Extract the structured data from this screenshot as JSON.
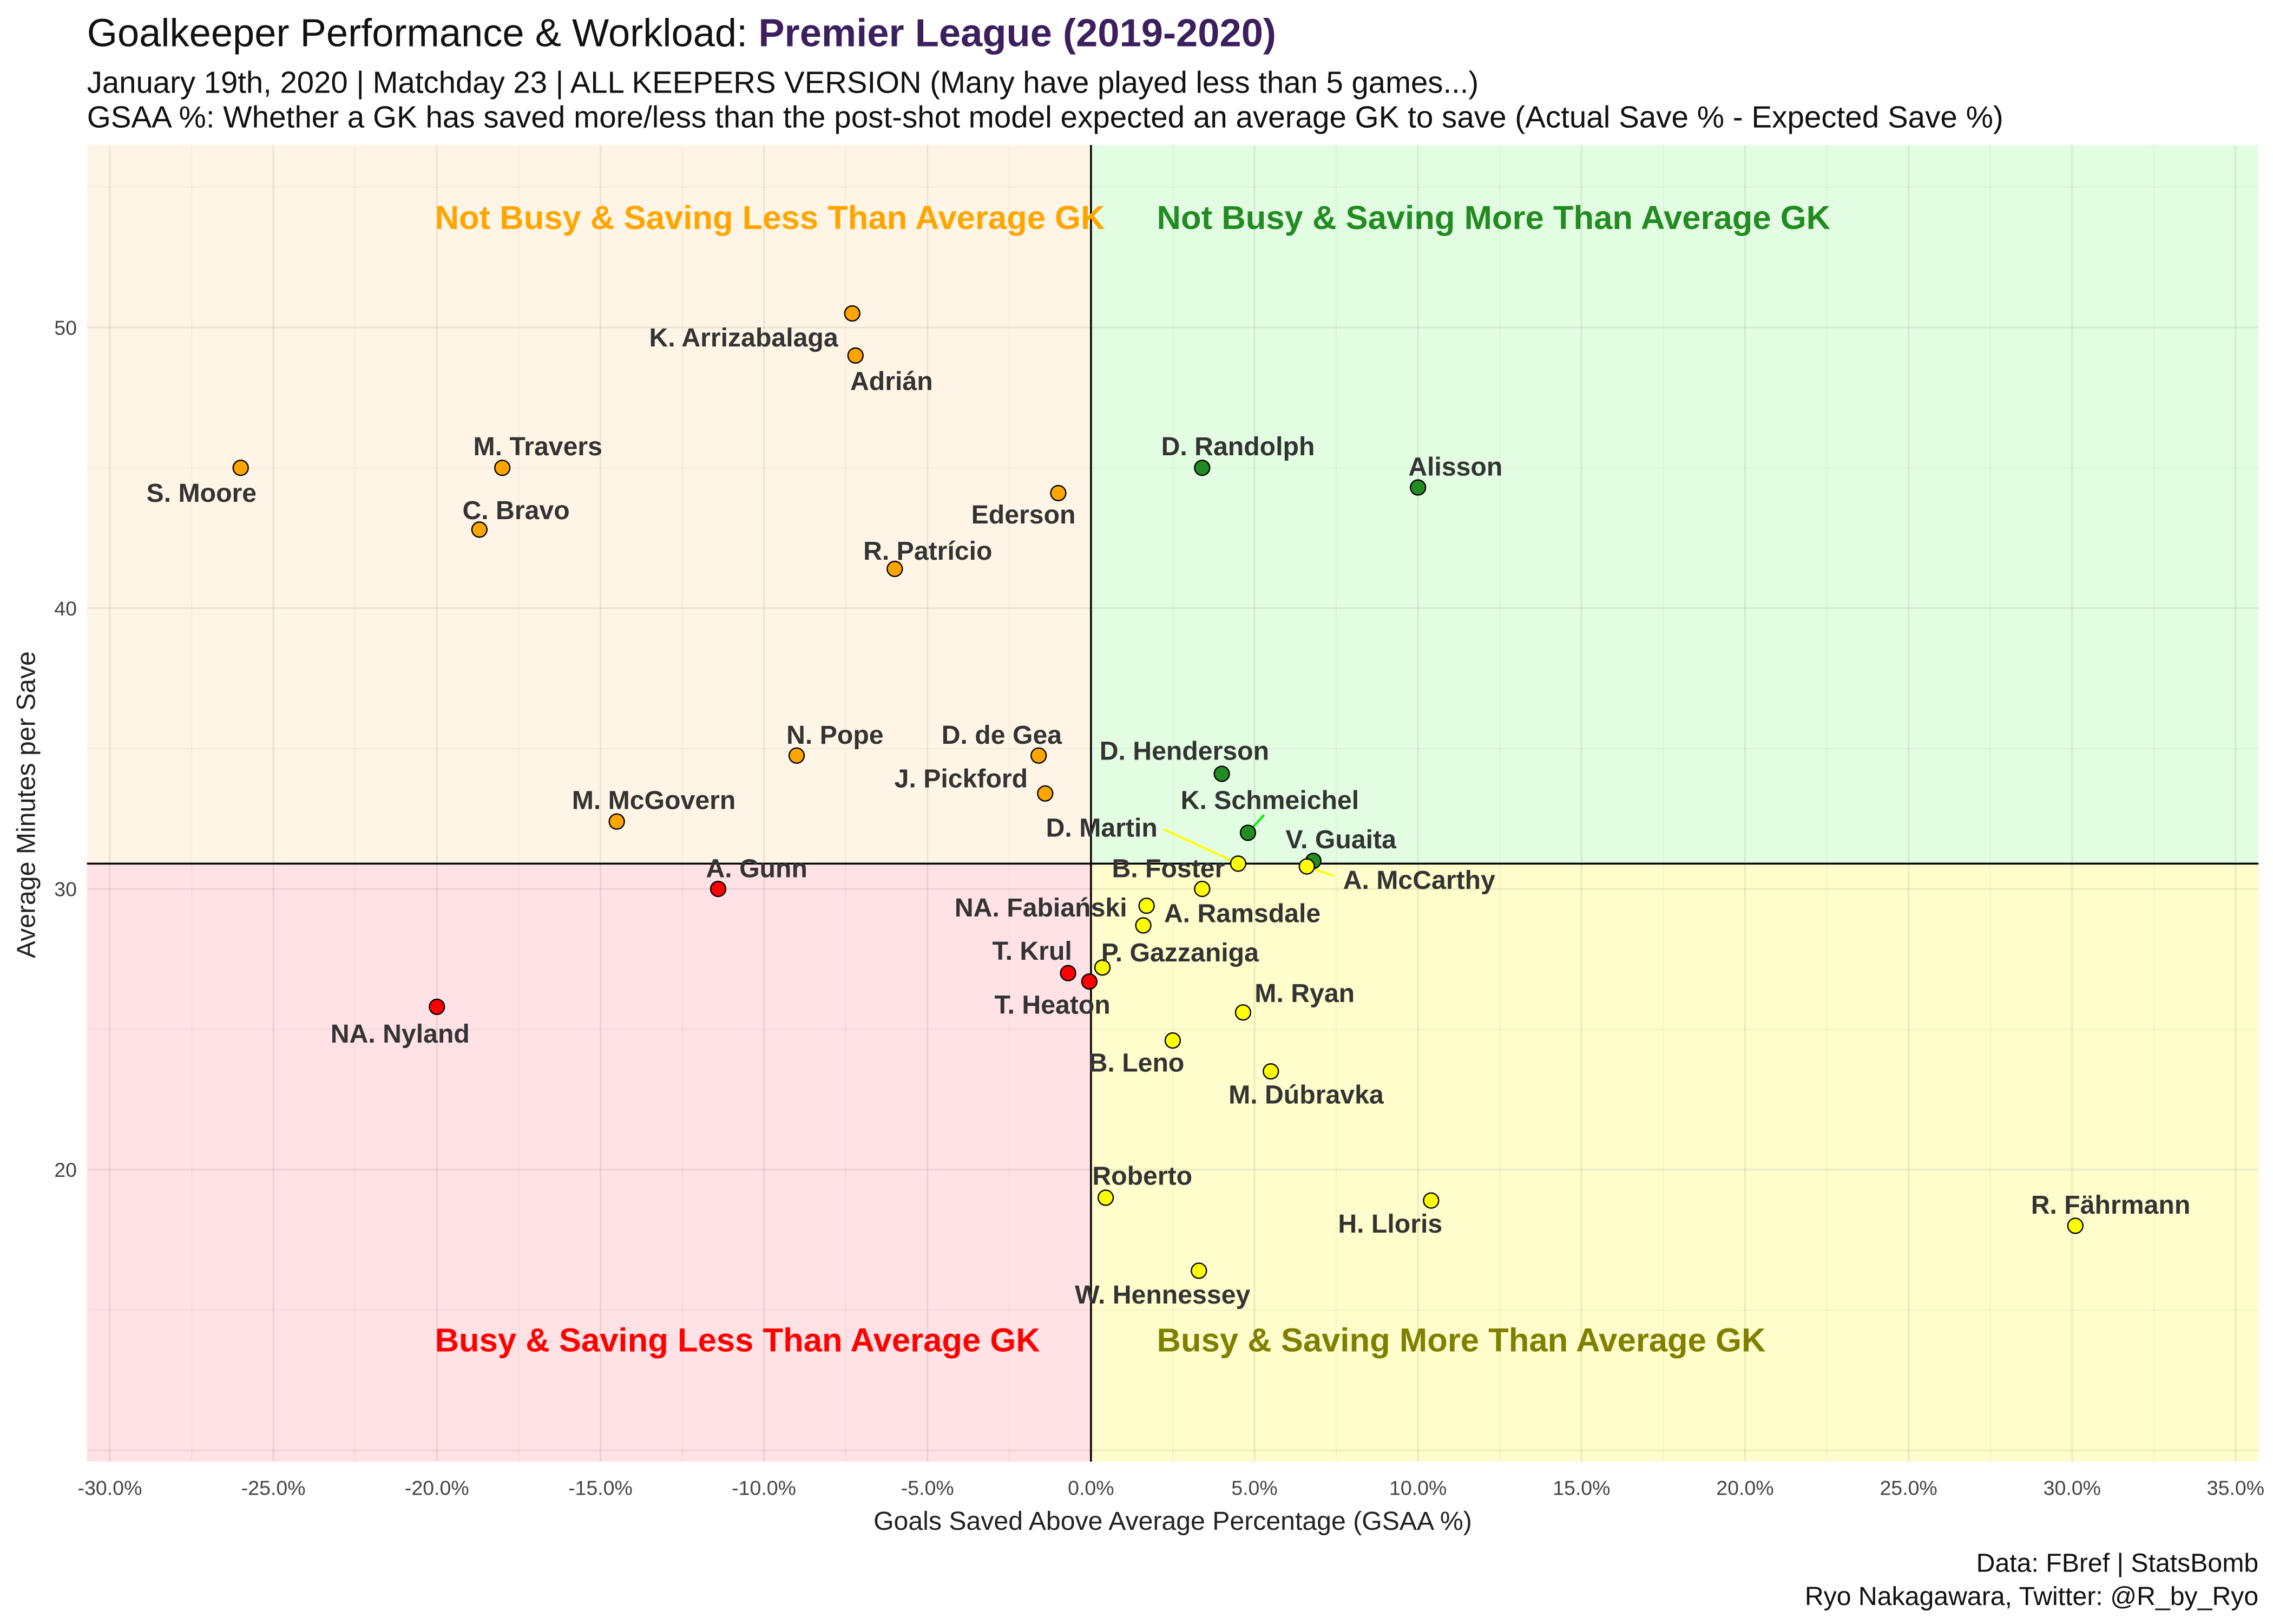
{
  "title": {
    "prefix": "Goalkeeper Performance & Workload: ",
    "highlight": "Premier League (2019-2020)"
  },
  "subtitle_1": "January 19th, 2020 | Matchday 23 | ALL KEEPERS VERSION (Many have played less than 5 games...)",
  "subtitle_2": "GSAA %: Whether a GK has saved more/less than the post-shot model expected an average GK to save (Actual Save % - Expected Save %)",
  "caption_1": "Data: FBref | StatsBomb",
  "caption_2": "Ryo Nakagawara, Twitter: @R_by_Ryo",
  "colors": {
    "orange": "#FFA500",
    "green": "#228B22",
    "red": "#FF0000",
    "yellow": "#FFFF00",
    "q_tl": "#FFF5E6",
    "q_tr": "#E3FDE3",
    "q_bl": "#FFE2E6",
    "q_br": "#FFFDCC",
    "q_tl_text": "#FFA500",
    "q_tr_text": "#228B22",
    "q_bl_text": "#FF0000",
    "q_br_text": "#808000"
  },
  "chart_data": {
    "type": "scatter",
    "xlabel": "Goals Saved Above Average Percentage (GSAA %)",
    "ylabel": "Average Minutes per Save",
    "xlim": [
      -30.7,
      35.7
    ],
    "ylim": [
      9.6,
      56.5
    ],
    "x_ticks": [
      -30,
      -25,
      -20,
      -15,
      -10,
      -5,
      0,
      5,
      10,
      15,
      20,
      25,
      30,
      35
    ],
    "x_tick_labels": [
      "-30.0%",
      "-25.0%",
      "-20.0%",
      "-15.0%",
      "-10.0%",
      "-5.0%",
      "0.0%",
      "5.0%",
      "10.0%",
      "15.0%",
      "20.0%",
      "25.0%",
      "30.0%",
      "35.0%"
    ],
    "y_ticks": [
      20,
      30,
      40,
      50
    ],
    "y_tick_labels": [
      "20",
      "30",
      "40",
      "50"
    ],
    "vline_x": 0,
    "hline_y": 30.9,
    "quadrant_labels": {
      "top_left": "Not Busy & Saving Less Than Average GK",
      "top_right": "Not Busy & Saving More Than Average GK",
      "bottom_left": "Busy & Saving Less Than Average GK",
      "bottom_right": "Busy & Saving More Than Average GK"
    },
    "points": [
      {
        "name": "S. Moore",
        "x": -26.0,
        "y": 45.0,
        "group": "orange"
      },
      {
        "name": "M. Travers",
        "x": -18.0,
        "y": 45.0,
        "group": "orange"
      },
      {
        "name": "C. Bravo",
        "x": -18.7,
        "y": 42.8,
        "group": "orange"
      },
      {
        "name": "K. Arrizabalaga",
        "x": -7.3,
        "y": 50.5,
        "group": "orange"
      },
      {
        "name": "Adrián",
        "x": -7.2,
        "y": 49.0,
        "group": "orange"
      },
      {
        "name": "Ederson",
        "x": -1.0,
        "y": 44.1,
        "group": "orange"
      },
      {
        "name": "R. Patrício",
        "x": -6.0,
        "y": 41.4,
        "group": "orange"
      },
      {
        "name": "N. Pope",
        "x": -9.0,
        "y": 34.75,
        "group": "orange"
      },
      {
        "name": "D. de Gea",
        "x": -1.6,
        "y": 34.75,
        "group": "orange"
      },
      {
        "name": "J. Pickford",
        "x": -1.4,
        "y": 33.4,
        "group": "orange"
      },
      {
        "name": "M. McGovern",
        "x": -14.5,
        "y": 32.4,
        "group": "orange"
      },
      {
        "name": "A. Gunn",
        "x": -11.4,
        "y": 30.0,
        "group": "red"
      },
      {
        "name": "NA. Nyland",
        "x": -20.0,
        "y": 25.8,
        "group": "red"
      },
      {
        "name": "T. Krul",
        "x": -0.7,
        "y": 27.0,
        "group": "red"
      },
      {
        "name": "T. Heaton",
        "x": -0.05,
        "y": 26.7,
        "group": "red"
      },
      {
        "name": "D. Randolph",
        "x": 3.4,
        "y": 45.0,
        "group": "green"
      },
      {
        "name": "Alisson",
        "x": 10.0,
        "y": 44.3,
        "group": "green"
      },
      {
        "name": "D. Henderson",
        "x": 4.0,
        "y": 34.1,
        "group": "green"
      },
      {
        "name": "K. Schmeichel",
        "x": 4.8,
        "y": 32.0,
        "group": "green"
      },
      {
        "name": "V. Guaita",
        "x": 6.8,
        "y": 31.0,
        "group": "green"
      },
      {
        "name": "D. Martin",
        "x": 4.5,
        "y": 30.9,
        "group": "yellow"
      },
      {
        "name": "A. McCarthy",
        "x": 6.6,
        "y": 30.8,
        "group": "yellow"
      },
      {
        "name": "B. Foster",
        "x": 3.4,
        "y": 30.0,
        "group": "yellow"
      },
      {
        "name": "NA. Fabiański",
        "x": 1.7,
        "y": 29.4,
        "group": "yellow"
      },
      {
        "name": "A. Ramsdale",
        "x": 1.6,
        "y": 28.7,
        "group": "yellow"
      },
      {
        "name": "P. Gazzaniga",
        "x": 0.35,
        "y": 27.2,
        "group": "yellow"
      },
      {
        "name": "M. Ryan",
        "x": 4.65,
        "y": 25.6,
        "group": "yellow"
      },
      {
        "name": "B. Leno",
        "x": 2.5,
        "y": 24.6,
        "group": "yellow"
      },
      {
        "name": "M. Dúbravka",
        "x": 5.5,
        "y": 23.5,
        "group": "yellow"
      },
      {
        "name": "Roberto",
        "x": 0.45,
        "y": 19.0,
        "group": "yellow"
      },
      {
        "name": "H. Lloris",
        "x": 10.4,
        "y": 18.9,
        "group": "yellow"
      },
      {
        "name": "R. Fährmann",
        "x": 30.1,
        "y": 18.0,
        "group": "yellow"
      },
      {
        "name": "W. Hennessey",
        "x": 3.3,
        "y": 16.4,
        "group": "yellow"
      }
    ]
  }
}
